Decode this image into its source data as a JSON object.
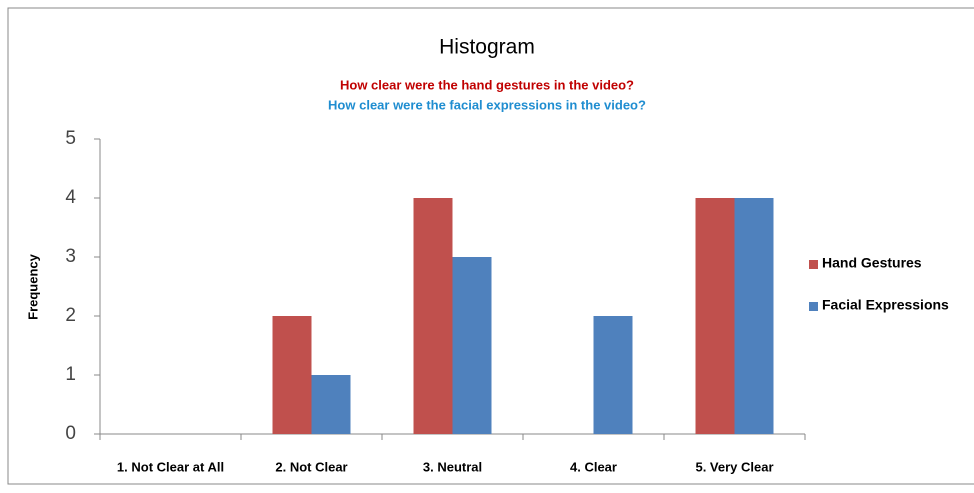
{
  "chart_data": {
    "type": "bar",
    "title": "Histogram",
    "subtitles": [
      {
        "text": "How clear were the hand gestures in the video?",
        "color": "#c00000"
      },
      {
        "text": "How clear were the facial expressions in the video?",
        "color": "#1f8dd0"
      }
    ],
    "y_label": "Frequency",
    "categories": [
      "1. Not Clear at All",
      "2. Not Clear",
      "3. Neutral",
      "4. Clear",
      "5. Very Clear"
    ],
    "series": [
      {
        "name": "Hand Gestures",
        "color": "#c0504d",
        "values": [
          0,
          2,
          4,
          0,
          4
        ]
      },
      {
        "name": "Facial Expressions",
        "color": "#4f81bd",
        "values": [
          0,
          1,
          3,
          2,
          4
        ]
      }
    ],
    "ylim": [
      0,
      5
    ],
    "yticks": [
      0,
      1,
      2,
      3,
      4,
      5
    ],
    "grid": false,
    "legend": "right"
  }
}
